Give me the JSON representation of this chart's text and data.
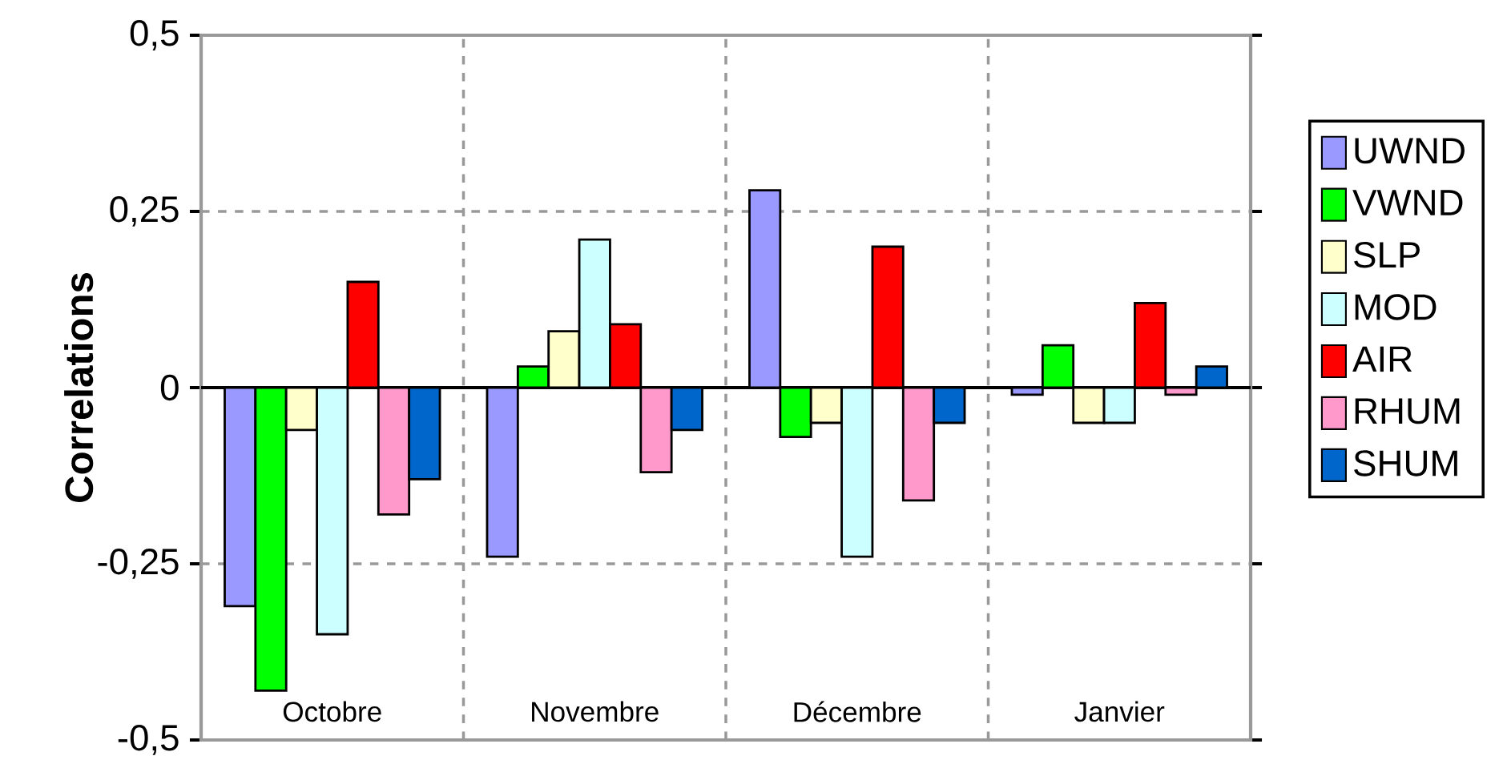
{
  "chart_data": {
    "type": "bar",
    "ylabel": "Correlations",
    "categories": [
      "Octobre",
      "Novembre",
      "Décembre",
      "Janvier"
    ],
    "series": [
      {
        "name": "UWND",
        "color": "#9999ff",
        "values": [
          -0.31,
          -0.24,
          0.28,
          -0.01
        ]
      },
      {
        "name": "VWND",
        "color": "#00ff00",
        "values": [
          -0.43,
          0.03,
          -0.07,
          0.06
        ]
      },
      {
        "name": "SLP",
        "color": "#ffffcc",
        "values": [
          -0.06,
          0.08,
          -0.05,
          -0.05
        ]
      },
      {
        "name": "MOD",
        "color": "#ccffff",
        "values": [
          -0.35,
          0.21,
          -0.24,
          -0.05
        ]
      },
      {
        "name": "AIR",
        "color": "#ff0000",
        "values": [
          0.15,
          0.09,
          0.2,
          0.12
        ]
      },
      {
        "name": "RHUM",
        "color": "#ff99cc",
        "values": [
          -0.18,
          -0.12,
          -0.16,
          -0.01
        ]
      },
      {
        "name": "SHUM",
        "color": "#0066cc",
        "values": [
          -0.13,
          -0.06,
          -0.05,
          0.03
        ]
      }
    ],
    "ylim": [
      -0.5,
      0.5
    ],
    "yticks": [
      {
        "value": -0.5,
        "label": "-0,5"
      },
      {
        "value": -0.25,
        "label": "-0,25"
      },
      0,
      {
        "value": 0.25,
        "label": "0,25"
      },
      {
        "value": 0.5,
        "label": "0,5"
      }
    ],
    "grid": true,
    "legend": "right"
  }
}
